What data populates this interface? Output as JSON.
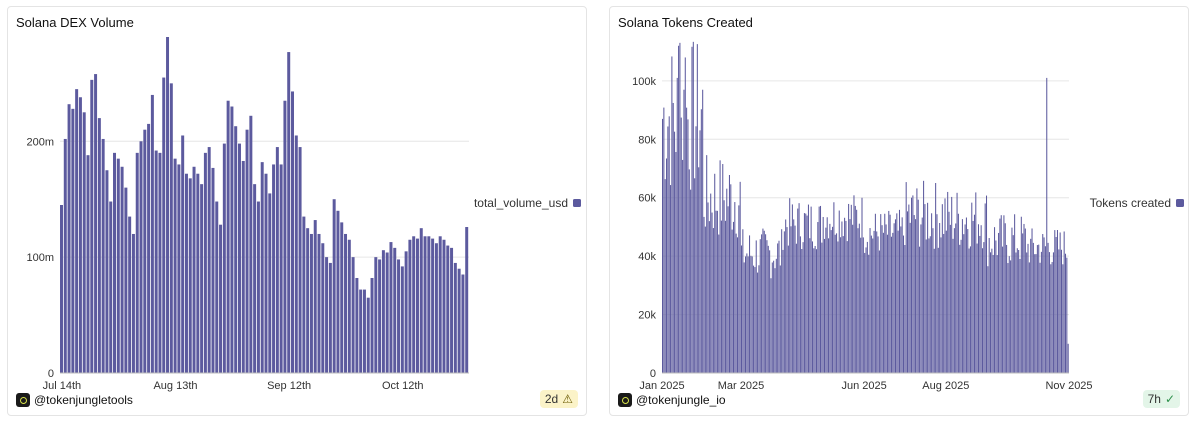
{
  "left_panel": {
    "title": "Solana DEX Volume",
    "user": "@tokenjungletools",
    "badge": "2d",
    "badge_icon": "warning-icon"
  },
  "right_panel": {
    "title": "Solana Tokens Created",
    "user": "@tokenjungle_io",
    "badge": "7h",
    "badge_icon": "check-circle-icon"
  },
  "colors": {
    "bar": "#5c5a9e",
    "grid": "#e6e6e6",
    "axis_text": "#333333"
  },
  "chart_data": [
    {
      "type": "bar",
      "title": "Solana DEX Volume",
      "series": [
        {
          "name": "total_volume_usd"
        }
      ],
      "legend": "right",
      "grid": true,
      "ylim": [
        0,
        290000000
      ],
      "y_ticks": [
        0,
        100000000,
        200000000
      ],
      "y_tick_labels": [
        "0",
        "100m",
        "200m"
      ],
      "x_tick_labels": [
        "Jul 14th",
        "Aug 13th",
        "Sep 12th",
        "Oct 12th"
      ],
      "x_tick_indices": [
        0,
        30,
        60,
        90
      ],
      "values": [
        145000000,
        202000000,
        232000000,
        228000000,
        245000000,
        238000000,
        225000000,
        188000000,
        253000000,
        258000000,
        220000000,
        202000000,
        175000000,
        148000000,
        190000000,
        185000000,
        178000000,
        160000000,
        135000000,
        120000000,
        190000000,
        200000000,
        210000000,
        215000000,
        240000000,
        192000000,
        190000000,
        255000000,
        290000000,
        250000000,
        185000000,
        180000000,
        205000000,
        172000000,
        168000000,
        178000000,
        172000000,
        163000000,
        190000000,
        195000000,
        177000000,
        148000000,
        128000000,
        198000000,
        235000000,
        230000000,
        213000000,
        198000000,
        183000000,
        210000000,
        222000000,
        163000000,
        148000000,
        182000000,
        172000000,
        155000000,
        180000000,
        195000000,
        180000000,
        235000000,
        277000000,
        243000000,
        205000000,
        195000000,
        135000000,
        125000000,
        120000000,
        132000000,
        120000000,
        112000000,
        100000000,
        95000000,
        150000000,
        140000000,
        130000000,
        120000000,
        115000000,
        100000000,
        82000000,
        72000000,
        72000000,
        65000000,
        82000000,
        100000000,
        98000000,
        106000000,
        104000000,
        113000000,
        108000000,
        98000000,
        92000000,
        105000000,
        115000000,
        118000000,
        116000000,
        125000000,
        118000000,
        118000000,
        116000000,
        112000000,
        118000000,
        115000000,
        110000000,
        108000000,
        95000000,
        90000000,
        85000000,
        126000000
      ]
    },
    {
      "type": "bar",
      "title": "Solana Tokens Created",
      "series": [
        {
          "name": "Tokens created"
        }
      ],
      "legend": "right",
      "grid": true,
      "ylim": [
        0,
        115000
      ],
      "y_ticks": [
        0,
        20000,
        40000,
        60000,
        80000,
        100000
      ],
      "y_tick_labels": [
        "0",
        "20k",
        "40k",
        "60k",
        "80k",
        "100k"
      ],
      "x_tick_labels": [
        "Jan 2025",
        "Mar 2025",
        "Jun 2025",
        "Aug 2025",
        "Nov 2025"
      ],
      "x_tick_dates": [
        "2025-01-01",
        "2025-03-01",
        "2025-06-01",
        "2025-08-01",
        "2025-11-01"
      ],
      "x_range": [
        "2025-01-01",
        "2025-11-01"
      ],
      "monthly_pattern": [
        {
          "month": "Jan 2025",
          "range": [
            60000,
            115000
          ],
          "spikes": {
            "11": 101000,
            "12": 112000,
            "13": 113000,
            "17": 108000
          }
        },
        {
          "month": "Feb 2025",
          "range": [
            45000,
            75000
          ]
        },
        {
          "month": "Mar 2025",
          "range": [
            32000,
            50000
          ]
        },
        {
          "month": "Apr 2025",
          "range": [
            42000,
            60000
          ]
        },
        {
          "month": "May 2025",
          "range": [
            45000,
            62000
          ]
        },
        {
          "month": "Jun 2025",
          "range": [
            40000,
            56000
          ]
        },
        {
          "month": "Jul 2025",
          "range": [
            42000,
            66000
          ]
        },
        {
          "month": "Aug 2025",
          "range": [
            42000,
            64000
          ]
        },
        {
          "month": "Sep 2025",
          "range": [
            36000,
            55000
          ]
        },
        {
          "month": "Oct 2025",
          "range": [
            36000,
            50000
          ],
          "spikes": {
            "14": 101000
          }
        }
      ],
      "last_value": 10000
    }
  ]
}
